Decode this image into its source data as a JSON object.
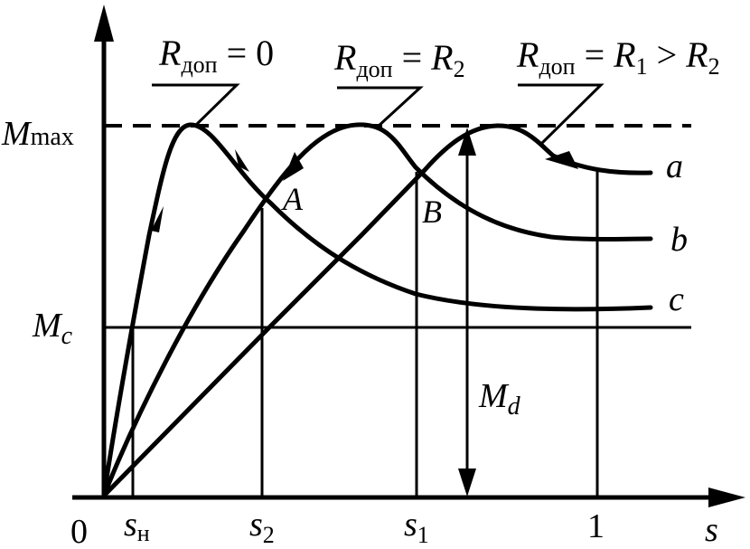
{
  "axes": {
    "origin": "0",
    "x_label": "s",
    "y_max_label": "M",
    "y_max_sub": "max",
    "mc_label": "M",
    "mc_sub": "c",
    "md_label": "M",
    "md_sub": "d"
  },
  "ticks": {
    "sn": {
      "main": "s",
      "sub": "н"
    },
    "s2": {
      "main": "s",
      "sub": "2"
    },
    "s1": {
      "main": "s",
      "sub": "1"
    },
    "one": "1"
  },
  "curves": {
    "a": "a",
    "b": "b",
    "c": "c"
  },
  "points": {
    "A": "A",
    "B": "B"
  },
  "resistance_labels": {
    "r0": {
      "R": "R",
      "sub": "доп",
      "rest": " = 0"
    },
    "r2": {
      "R": "R",
      "sub": "доп",
      "eq": " = ",
      "R2": "R",
      "R2sub": "2"
    },
    "r1": {
      "R": "R",
      "sub": "доп",
      "eq": " = ",
      "R1": "R",
      "R1sub": "1",
      "gt": " > ",
      "R2": "R",
      "R2sub": "2"
    }
  }
}
